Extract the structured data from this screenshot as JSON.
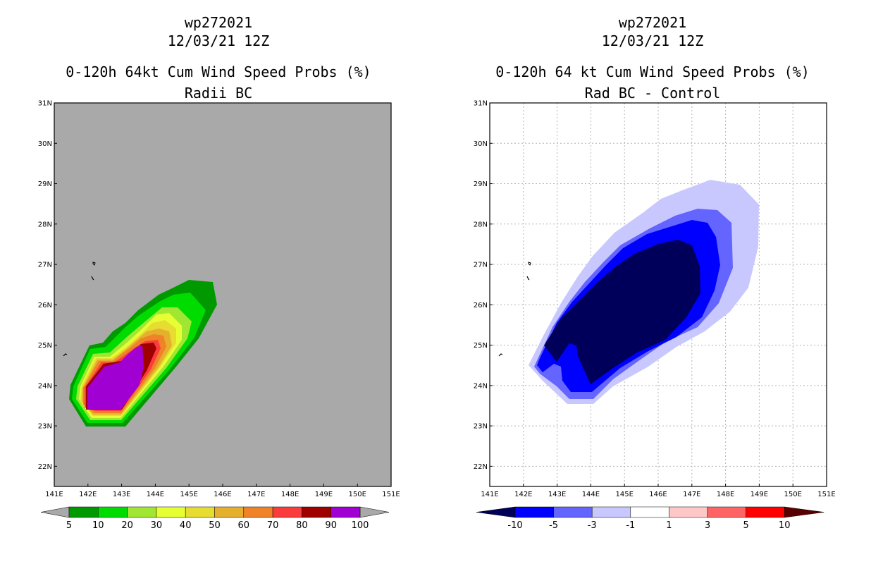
{
  "left": {
    "storm": "wp272021",
    "date": "12/03/21 12Z",
    "title": "0-120h 64kt Cum Wind Speed Probs (%)",
    "subtitle": "Radii BC"
  },
  "right": {
    "storm": "wp272021",
    "date": "12/03/21 12Z",
    "title": "0-120h 64 kt Cum Wind Speed Probs (%)",
    "subtitle": "Rad BC - Control"
  },
  "lat_ticks": [
    "31N",
    "30N",
    "29N",
    "28N",
    "27N",
    "26N",
    "25N",
    "24N",
    "23N",
    "22N"
  ],
  "lon_ticks": [
    "141E",
    "142E",
    "143E",
    "144E",
    "145E",
    "146E",
    "147E",
    "148E",
    "149E",
    "150E",
    "151E"
  ],
  "colorbar_left": {
    "labels": [
      "5",
      "10",
      "20",
      "30",
      "40",
      "50",
      "60",
      "70",
      "80",
      "90",
      "100"
    ],
    "colors": [
      "#009a00",
      "#00dc00",
      "#a0e632",
      "#e6ff32",
      "#e6dc32",
      "#e6af2d",
      "#f08228",
      "#fa3c3c",
      "#a00000",
      "#a000d2"
    ]
  },
  "colorbar_right": {
    "labels": [
      "-10",
      "-5",
      "-3",
      "-1",
      "1",
      "3",
      "5",
      "10"
    ],
    "colors": [
      "#00005a",
      "#0000ff",
      "#6464ff",
      "#c8c8ff",
      "#ffffff",
      "#ffc8c8",
      "#ff6464",
      "#ff0000",
      "#5a0000"
    ]
  },
  "chart_data": [
    {
      "type": "contour",
      "title": "0-120h 64kt Cum Wind Speed Probs (%)",
      "subtitle": "Radii BC",
      "x_range": [
        141,
        151
      ],
      "y_range": [
        21.5,
        31
      ],
      "levels": [
        5,
        10,
        20,
        30,
        40,
        50,
        60,
        70,
        80,
        90,
        100
      ],
      "region": "probability maximum (>90%) near 23.5-25N, 142-144E, extending NE toward 26N 145.5E",
      "background": "gray (land/ocean mask)"
    },
    {
      "type": "contour",
      "title": "0-120h 64 kt Cum Wind Speed Probs (%)",
      "subtitle": "Rad BC - Control",
      "x_range": [
        141,
        151
      ],
      "y_range": [
        21.5,
        31
      ],
      "levels": [
        -10,
        -5,
        -3,
        -1,
        1,
        3,
        5,
        10
      ],
      "region": "negative differences (below -10) centered near 25.5N 145.5E, spanning 142-149E, 23.5-29N",
      "grid": true
    }
  ]
}
